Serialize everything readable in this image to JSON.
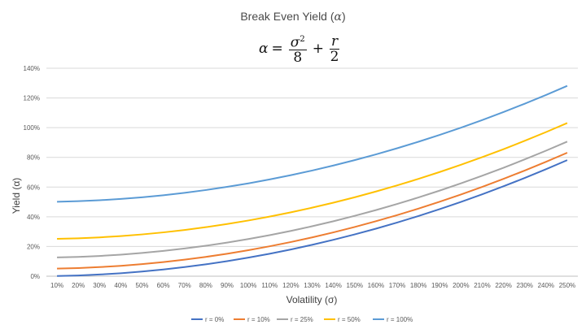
{
  "page": {
    "title_text": "Break Even Yield (",
    "title_symbol": "α",
    "title_close": ")",
    "formula": {
      "lhs": "α",
      "equals": "=",
      "frac1_num": "σ",
      "frac1_sup": "2",
      "frac1_den": "8",
      "plus": "+",
      "frac2_num": "r",
      "frac2_den": "2"
    }
  },
  "chart_data": {
    "type": "line",
    "title": "Break Even Yield (α)",
    "xlabel": "Volatility (σ)",
    "ylabel": "Yield (α)",
    "ylim": [
      0,
      1.4
    ],
    "yticks": [
      0,
      0.2,
      0.4,
      0.6,
      0.8,
      1.0,
      1.2,
      1.4
    ],
    "ytick_labels": [
      "0%",
      "20%",
      "40%",
      "60%",
      "80%",
      "100%",
      "120%",
      "140%"
    ],
    "grid": true,
    "legend_position": "bottom",
    "categories": [
      "10%",
      "20%",
      "30%",
      "40%",
      "50%",
      "60%",
      "70%",
      "80%",
      "90%",
      "100%",
      "110%",
      "120%",
      "130%",
      "140%",
      "150%",
      "160%",
      "170%",
      "180%",
      "190%",
      "200%",
      "210%",
      "220%",
      "230%",
      "240%",
      "250%"
    ],
    "series": [
      {
        "name": "r = 0%",
        "color": "#4472c4",
        "values": [
          0.0013,
          0.005,
          0.0113,
          0.02,
          0.0313,
          0.045,
          0.0613,
          0.08,
          0.1013,
          0.125,
          0.1513,
          0.18,
          0.2113,
          0.245,
          0.2813,
          0.32,
          0.3613,
          0.405,
          0.4513,
          0.5,
          0.5513,
          0.605,
          0.6613,
          0.72,
          0.7813
        ]
      },
      {
        "name": "r = 10%",
        "color": "#ed7d31",
        "values": [
          0.0513,
          0.055,
          0.0613,
          0.07,
          0.0813,
          0.095,
          0.1113,
          0.13,
          0.1513,
          0.175,
          0.2013,
          0.23,
          0.2613,
          0.295,
          0.3313,
          0.37,
          0.4113,
          0.455,
          0.5013,
          0.55,
          0.6013,
          0.655,
          0.7113,
          0.77,
          0.8313
        ]
      },
      {
        "name": "r = 25%",
        "color": "#a5a5a5",
        "values": [
          0.1263,
          0.13,
          0.1363,
          0.145,
          0.1563,
          0.17,
          0.1863,
          0.205,
          0.2263,
          0.25,
          0.2763,
          0.305,
          0.3363,
          0.37,
          0.4063,
          0.445,
          0.4863,
          0.53,
          0.5763,
          0.625,
          0.6763,
          0.73,
          0.7863,
          0.845,
          0.9063
        ]
      },
      {
        "name": "r = 50%",
        "color": "#ffc000",
        "values": [
          0.2513,
          0.255,
          0.2613,
          0.27,
          0.2813,
          0.295,
          0.3113,
          0.33,
          0.3513,
          0.375,
          0.4013,
          0.43,
          0.4613,
          0.495,
          0.5313,
          0.57,
          0.6113,
          0.655,
          0.7013,
          0.75,
          0.8013,
          0.855,
          0.9113,
          0.97,
          1.0313
        ]
      },
      {
        "name": "r = 100%",
        "color": "#5b9bd5",
        "values": [
          0.5013,
          0.505,
          0.5113,
          0.52,
          0.5313,
          0.545,
          0.5613,
          0.58,
          0.6013,
          0.625,
          0.6513,
          0.68,
          0.7113,
          0.745,
          0.7813,
          0.82,
          0.8613,
          0.905,
          0.9513,
          1.0,
          1.0513,
          1.105,
          1.1613,
          1.22,
          1.2813
        ]
      }
    ]
  }
}
